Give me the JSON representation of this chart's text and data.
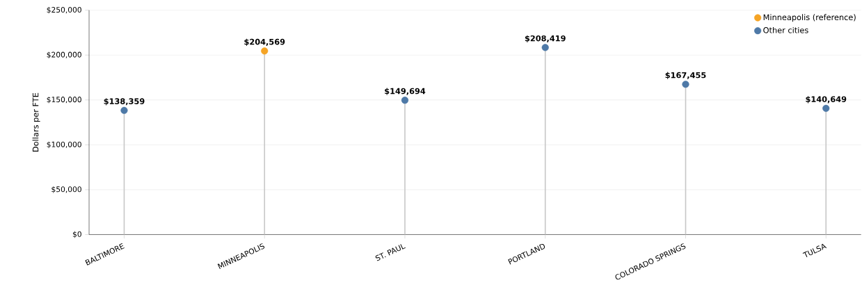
{
  "chart_data": {
    "type": "lollipop",
    "categories": [
      "BALTIMORE",
      "MINNEAPOLIS",
      "ST. PAUL",
      "PORTLAND",
      "COLORADO SPRINGS",
      "TULSA"
    ],
    "ylabel": "Dollars per FTE",
    "series": [
      {
        "name": "Minneapolis (reference)",
        "color": "#f5a425",
        "values": [
          null,
          204569,
          null,
          null,
          null,
          null
        ],
        "value_labels": [
          null,
          "$204,569",
          null,
          null,
          null,
          null
        ]
      },
      {
        "name": "Other cities",
        "color": "#4e79a7",
        "values": [
          138359,
          null,
          149694,
          208419,
          167455,
          140649
        ],
        "value_labels": [
          "$138,359",
          null,
          "$149,694",
          "$208,419",
          "$167,455",
          "$140,649"
        ]
      }
    ],
    "ylim": [
      0,
      250000
    ],
    "yticks": [
      {
        "value": 0,
        "label": "$0"
      },
      {
        "value": 50000,
        "label": "$50,000"
      },
      {
        "value": 100000,
        "label": "$100,000"
      },
      {
        "value": 150000,
        "label": "$150,000"
      },
      {
        "value": 200000,
        "label": "$200,000"
      },
      {
        "value": 250000,
        "label": "$250,000"
      }
    ],
    "grid": "y",
    "legend": "top right"
  }
}
